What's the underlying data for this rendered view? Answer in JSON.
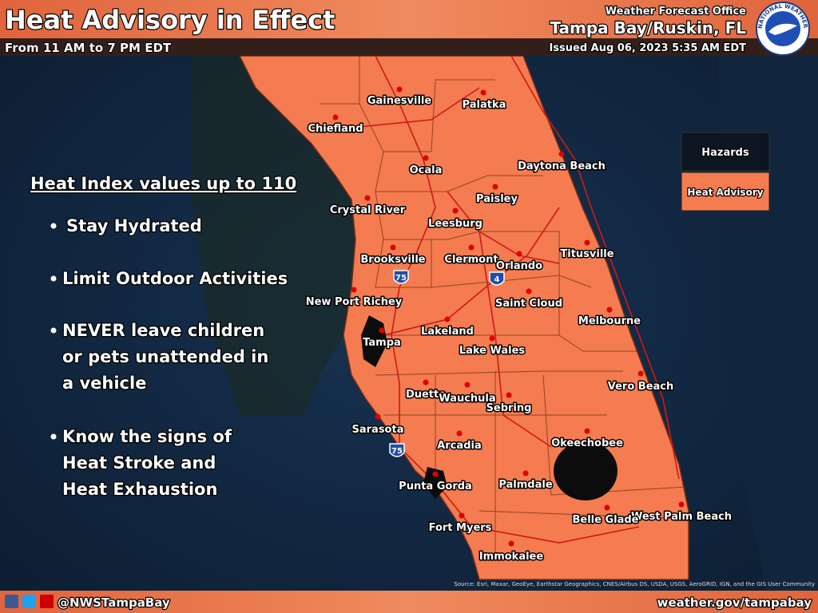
{
  "header": {
    "title": "Heat Advisory in Effect",
    "subtitle": "From 11 AM to 7 PM EDT",
    "office_line": "Weather Forecast Office",
    "office": "Tampa Bay/Ruskin, FL",
    "issued": "Issued Aug 06, 2023 5:35 AM EDT",
    "logo_text": "NATIONAL WEATHER SERVICE"
  },
  "legend": {
    "title": "Hazards",
    "items": [
      "Heat Advisory"
    ]
  },
  "info": {
    "heading": "Heat Index values up to 110",
    "bullets": [
      [
        "Stay Hydrated"
      ],
      [
        "Limit Outdoor Activities"
      ],
      [
        "NEVER leave children",
        "or pets unattended in",
        "a vehicle"
      ],
      [
        "Know the signs of",
        "Heat Stroke and",
        "Heat Exhaustion"
      ]
    ]
  },
  "cities": [
    "Gainesville",
    "Palatka",
    "Chiefland",
    "Ocala",
    "Daytona Beach",
    "Crystal River",
    "Paisley",
    "Leesburg",
    "Titusville",
    "Brooksville",
    "Clermont",
    "Orlando",
    "New Port Richey",
    "Saint Cloud",
    "Melbourne",
    "Lakeland",
    "Tampa",
    "Lake Wales",
    "Vero Beach",
    "Duette",
    "Wauchula",
    "Sebring",
    "Sarasota",
    "Okeechobee",
    "Arcadia",
    "Punta Gorda",
    "Palmdale",
    "West Palm Beach",
    "Belle Glade",
    "Fort Myers",
    "Immokalee"
  ],
  "highways": [
    "75",
    "4",
    "75"
  ],
  "source": "Source: Esri, Maxar, GeoEye, Earthstar Geographics, CNES/Airbus DS, USDA, USGS, AeroGRID, IGN, and the GIS User Community",
  "footer": {
    "handle": "@NWSTampaBay",
    "website": "weather.gov/tampabay"
  }
}
